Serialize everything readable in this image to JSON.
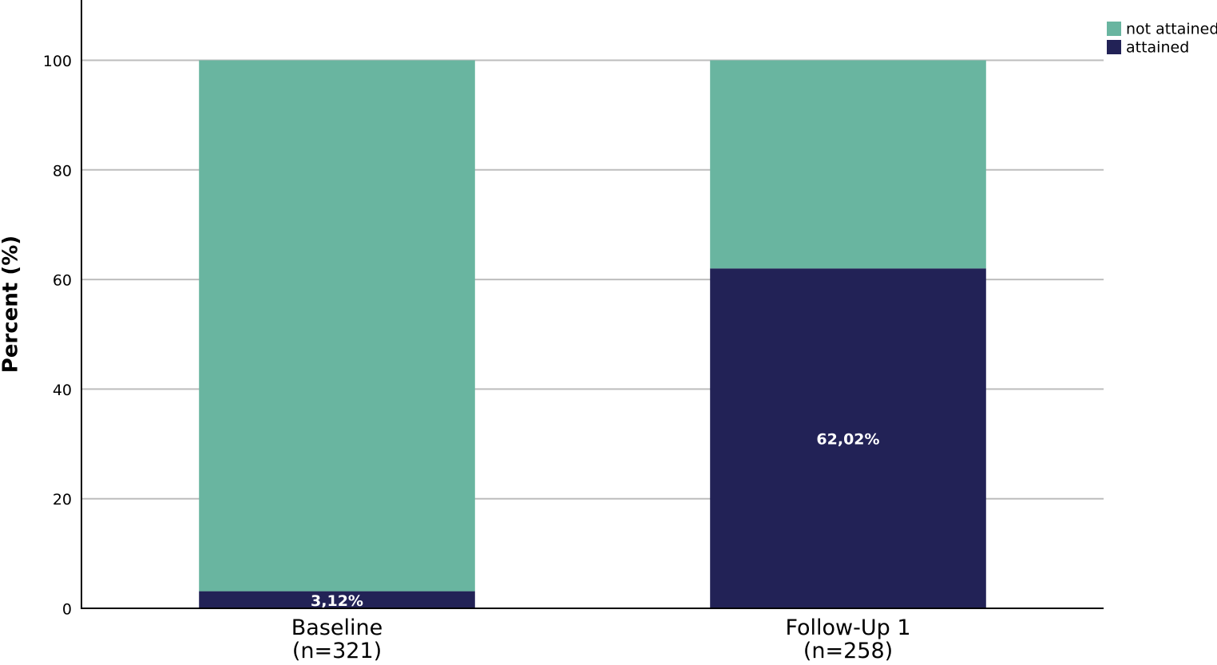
{
  "chart_data": {
    "type": "stacked_bar",
    "y_label": "Percent (%)",
    "categories": [
      "Baseline\n(n=321)",
      "Follow-Up 1\n(n=258)"
    ],
    "series": [
      {
        "name": "not attained",
        "color": "#69b5a0",
        "values": [
          96.88,
          37.98
        ]
      },
      {
        "name": "attained",
        "color": "#222256",
        "values": [
          3.12,
          62.02
        ],
        "value_labels": [
          "3,12%",
          "62,02%"
        ]
      }
    ],
    "ylim": [
      0,
      111
    ],
    "yticks": [
      0,
      20,
      40,
      60,
      80,
      100
    ],
    "grid": true,
    "legend": "upper right"
  }
}
